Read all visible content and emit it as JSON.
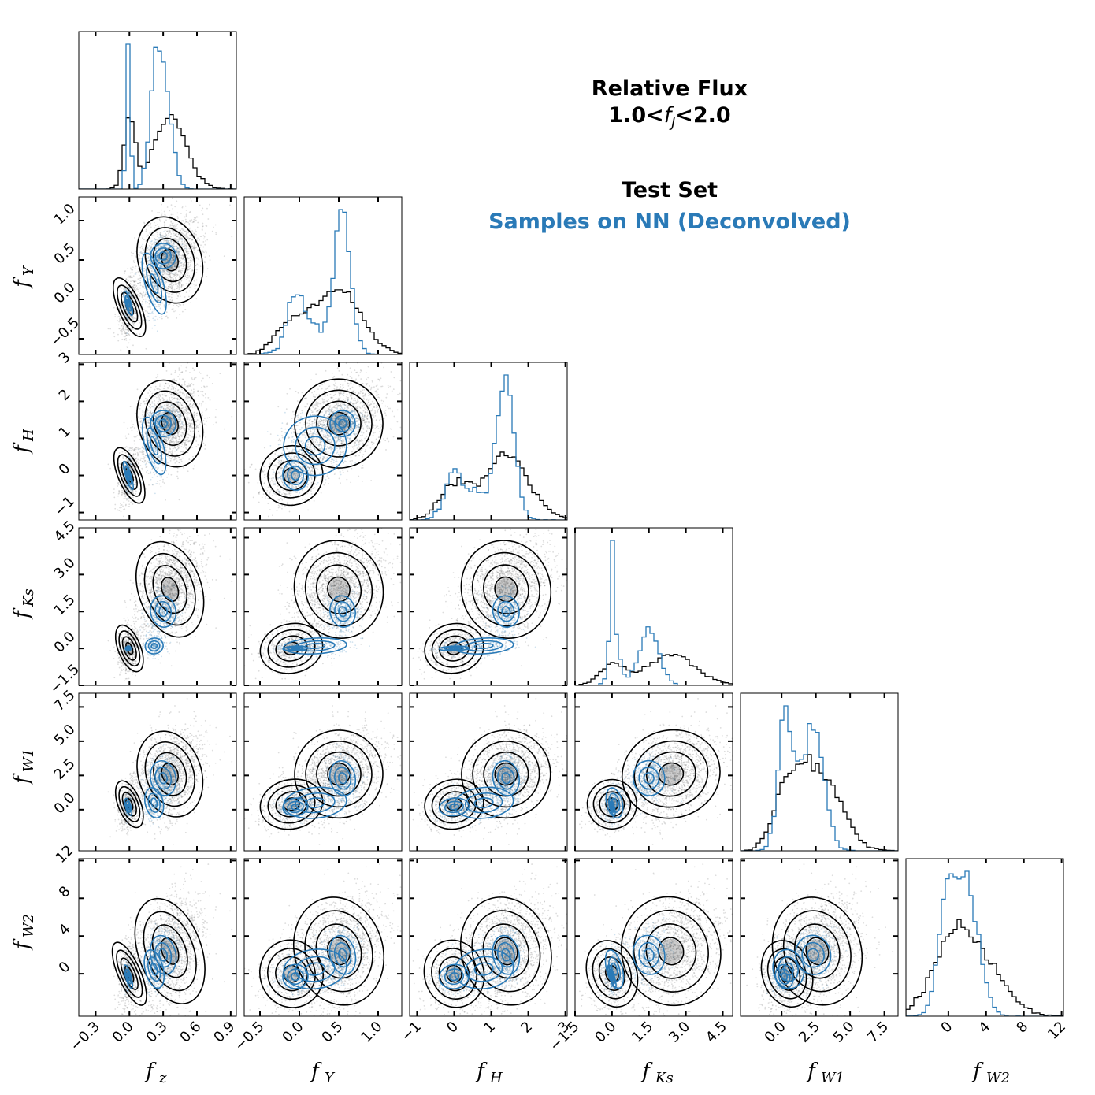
{
  "title": {
    "line1": "Relative Flux",
    "line2_prefix": "1.0<",
    "line2_var": "f",
    "line2_sub": "J",
    "line2_suffix": "<2.0"
  },
  "legend": {
    "test_label": "Test Set",
    "nn_label": "Samples on NN (Deconvolved)",
    "test_color": "#000000",
    "nn_color": "#2a7ab7"
  },
  "chart_data": {
    "type": "corner",
    "variables": [
      {
        "name": "f",
        "sub": "z",
        "range": [
          -0.45,
          0.95
        ],
        "ticks": [
          -0.3,
          0.0,
          0.3,
          0.6,
          0.9
        ],
        "tick_labels": [
          "−0.3",
          "0.0",
          "0.3",
          "0.6",
          "0.9"
        ]
      },
      {
        "name": "f",
        "sub": "Y",
        "range": [
          -0.7,
          1.3
        ],
        "ticks": [
          -0.5,
          0.0,
          0.5,
          1.0
        ],
        "tick_labels": [
          "−0.5",
          "0.0",
          "0.5",
          "1.0"
        ]
      },
      {
        "name": "f",
        "sub": "H",
        "range": [
          -1.2,
          3.05
        ],
        "ticks": [
          -1,
          0,
          1,
          2,
          3
        ],
        "tick_labels": [
          "−1",
          "0",
          "1",
          "2",
          "3"
        ]
      },
      {
        "name": "f",
        "sub": "Ks",
        "range": [
          -1.5,
          4.9
        ],
        "ticks": [
          -1.5,
          0.0,
          1.5,
          3.0,
          4.5
        ],
        "tick_labels": [
          "−1.5",
          "0.0",
          "1.5",
          "3.0",
          "4.5"
        ]
      },
      {
        "name": "f",
        "sub": "W1",
        "range": [
          -3.0,
          8.5
        ],
        "ticks": [
          0.0,
          2.5,
          5.0,
          7.5
        ],
        "tick_labels": [
          "0.0",
          "2.5",
          "5.0",
          "7.5"
        ]
      },
      {
        "name": "f",
        "sub": "W2",
        "range": [
          -4.5,
          12.2
        ],
        "ticks": [
          0,
          4,
          8,
          12
        ],
        "tick_labels": [
          "0",
          "4",
          "8",
          "12"
        ]
      }
    ],
    "series": [
      {
        "name": "Test Set",
        "color": "#000000",
        "components": [
          {
            "weight": 0.25,
            "mean": [
              0.0,
              -0.1,
              0.0,
              0.0,
              0.4,
              0.0
            ],
            "sd": [
              0.05,
              0.2,
              0.4,
              0.5,
              0.9,
              1.8
            ]
          },
          {
            "weight": 0.75,
            "mean": [
              0.36,
              0.5,
              1.4,
              2.4,
              2.6,
              2.4
            ],
            "sd": [
              0.14,
              0.28,
              0.6,
              1.0,
              1.6,
              2.9
            ]
          }
        ],
        "correlation": 0.55
      },
      {
        "name": "Samples on NN (Deconvolved)",
        "color": "#2a7ab7",
        "components": [
          {
            "weight": 0.2,
            "mean": [
              -0.01,
              -0.05,
              0.0,
              0.0,
              0.2,
              -0.3
            ],
            "sd": [
              0.015,
              0.1,
              0.25,
              0.06,
              0.4,
              0.8
            ]
          },
          {
            "weight": 0.55,
            "mean": [
              0.3,
              0.55,
              1.4,
              1.5,
              2.3,
              2.0
            ],
            "sd": [
              0.07,
              0.1,
              0.22,
              0.4,
              0.8,
              1.3
            ]
          },
          {
            "weight": 0.25,
            "mean": [
              0.22,
              0.2,
              0.8,
              0.1,
              0.5,
              0.5
            ],
            "sd": [
              0.05,
              0.25,
              0.5,
              0.2,
              0.7,
              1.3
            ]
          }
        ],
        "correlation": 0.35
      }
    ],
    "grid": false,
    "legend_position": "top-right"
  }
}
